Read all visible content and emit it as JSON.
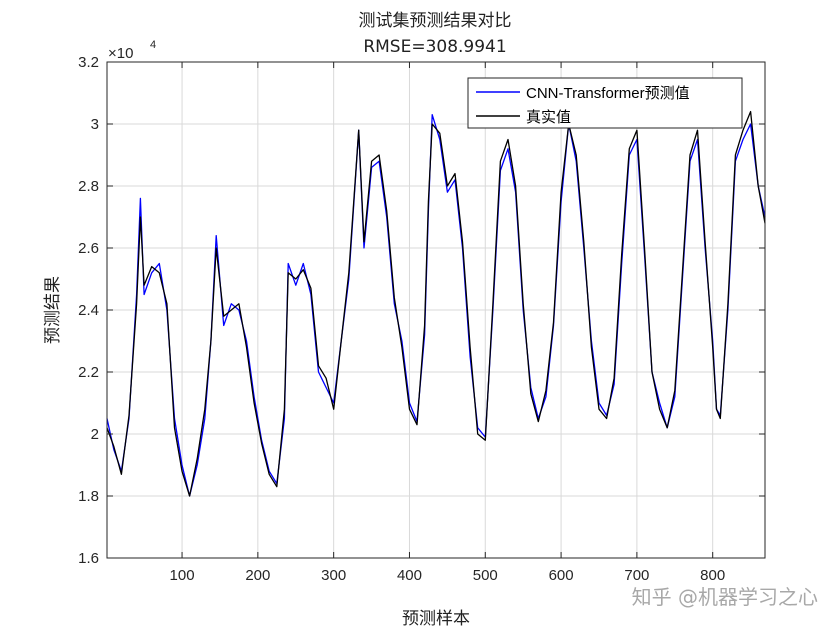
{
  "chart_data": {
    "type": "line",
    "title": "测试集预测结果对比",
    "subtitle": "RMSE=308.9941",
    "xlabel": "预测样本",
    "ylabel": "预测结果",
    "y_exponent_label": "×10",
    "y_exponent_power": "4",
    "xlim": [
      1,
      869
    ],
    "ylim": [
      1.6,
      3.2
    ],
    "xticks": [
      100,
      200,
      300,
      400,
      500,
      600,
      700,
      800
    ],
    "yticks": [
      1.6,
      1.8,
      2.0,
      2.2,
      2.4,
      2.6,
      2.8,
      3.0,
      3.2
    ],
    "ytick_labels": [
      "1.6",
      "1.8",
      "2",
      "2.2",
      "2.4",
      "2.6",
      "2.8",
      "3",
      "3.2"
    ],
    "grid": true,
    "legend_position": "top-right",
    "series": [
      {
        "name": "CNN-Transformer预测值",
        "color": "#0000ff",
        "x": [
          1,
          10,
          20,
          30,
          40,
          45,
          50,
          60,
          70,
          80,
          90,
          100,
          110,
          120,
          130,
          138,
          145,
          155,
          165,
          175,
          185,
          195,
          205,
          215,
          225,
          235,
          240,
          250,
          260,
          270,
          280,
          290,
          300,
          310,
          320,
          333,
          340,
          350,
          360,
          370,
          380,
          390,
          400,
          410,
          420,
          425,
          430,
          440,
          450,
          460,
          470,
          480,
          490,
          500,
          510,
          520,
          530,
          540,
          550,
          560,
          570,
          580,
          590,
          600,
          610,
          620,
          630,
          640,
          650,
          660,
          670,
          680,
          690,
          700,
          710,
          720,
          730,
          740,
          750,
          760,
          770,
          780,
          790,
          800,
          805,
          810,
          820,
          830,
          840,
          850,
          860,
          869
        ],
        "y": [
          2.05,
          1.95,
          1.88,
          2.05,
          2.45,
          2.76,
          2.45,
          2.52,
          2.55,
          2.4,
          2.05,
          1.9,
          1.8,
          1.9,
          2.05,
          2.3,
          2.64,
          2.35,
          2.42,
          2.4,
          2.3,
          2.12,
          1.98,
          1.88,
          1.84,
          2.05,
          2.55,
          2.48,
          2.55,
          2.45,
          2.2,
          2.15,
          2.1,
          2.3,
          2.5,
          2.98,
          2.6,
          2.86,
          2.88,
          2.7,
          2.42,
          2.3,
          2.1,
          2.04,
          2.32,
          2.72,
          3.03,
          2.95,
          2.78,
          2.82,
          2.6,
          2.25,
          2.02,
          1.99,
          2.4,
          2.85,
          2.92,
          2.78,
          2.4,
          2.15,
          2.05,
          2.12,
          2.35,
          2.75,
          3.0,
          2.88,
          2.6,
          2.3,
          2.1,
          2.06,
          2.16,
          2.55,
          2.9,
          2.95,
          2.58,
          2.2,
          2.1,
          2.02,
          2.12,
          2.5,
          2.88,
          2.95,
          2.6,
          2.3,
          2.08,
          2.06,
          2.4,
          2.88,
          2.95,
          3.0,
          2.8,
          2.7
        ]
      },
      {
        "name": "真实值",
        "color": "#000000",
        "x": [
          1,
          10,
          20,
          30,
          40,
          45,
          50,
          60,
          70,
          80,
          90,
          100,
          110,
          120,
          130,
          138,
          145,
          155,
          165,
          175,
          185,
          195,
          205,
          215,
          225,
          235,
          240,
          250,
          260,
          270,
          280,
          290,
          300,
          310,
          320,
          333,
          340,
          350,
          360,
          370,
          380,
          390,
          400,
          410,
          420,
          425,
          430,
          440,
          450,
          460,
          470,
          480,
          490,
          500,
          510,
          520,
          530,
          540,
          550,
          560,
          570,
          580,
          590,
          600,
          610,
          620,
          630,
          640,
          650,
          660,
          670,
          680,
          690,
          700,
          710,
          720,
          730,
          740,
          750,
          760,
          770,
          780,
          790,
          800,
          805,
          810,
          820,
          830,
          840,
          850,
          860,
          869
        ],
        "y": [
          2.02,
          1.96,
          1.87,
          2.06,
          2.42,
          2.7,
          2.48,
          2.54,
          2.52,
          2.42,
          2.02,
          1.88,
          1.8,
          1.92,
          2.08,
          2.3,
          2.6,
          2.38,
          2.4,
          2.42,
          2.28,
          2.1,
          1.97,
          1.87,
          1.83,
          2.08,
          2.52,
          2.5,
          2.53,
          2.47,
          2.22,
          2.18,
          2.08,
          2.3,
          2.52,
          2.98,
          2.62,
          2.88,
          2.9,
          2.72,
          2.44,
          2.28,
          2.08,
          2.03,
          2.35,
          2.75,
          3.0,
          2.97,
          2.8,
          2.84,
          2.62,
          2.28,
          2.0,
          1.98,
          2.42,
          2.88,
          2.95,
          2.8,
          2.42,
          2.13,
          2.04,
          2.14,
          2.36,
          2.78,
          3.0,
          2.9,
          2.62,
          2.28,
          2.08,
          2.05,
          2.18,
          2.58,
          2.92,
          2.98,
          2.6,
          2.2,
          2.08,
          2.02,
          2.14,
          2.52,
          2.9,
          2.98,
          2.62,
          2.28,
          2.08,
          2.05,
          2.42,
          2.9,
          2.98,
          3.04,
          2.8,
          2.68
        ]
      }
    ]
  },
  "watermark": "知乎 @机器学习之心"
}
